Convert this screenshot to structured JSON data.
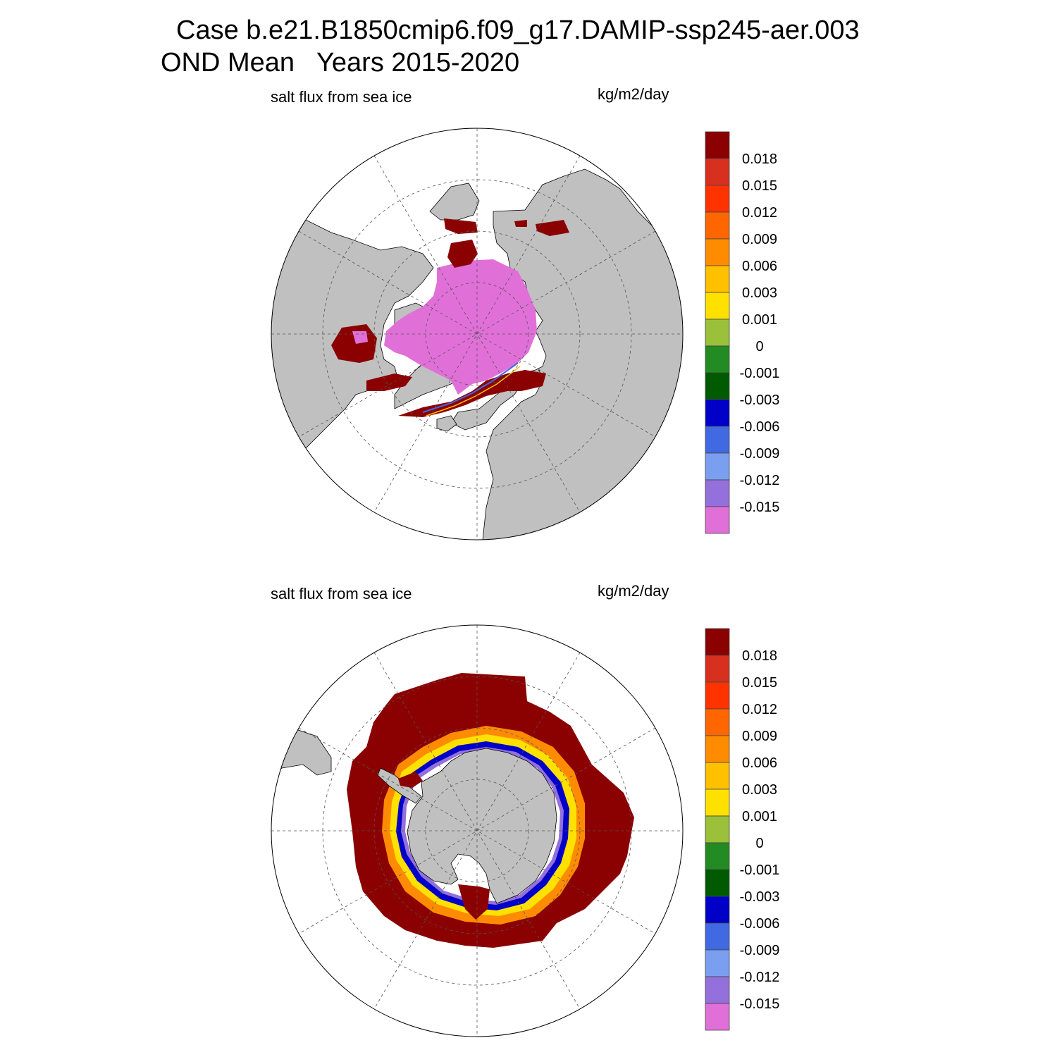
{
  "header": {
    "case_line": "Case b.e21.B1850cmip6.f09_g17.DAMIP-ssp245-aer.003",
    "period_line": "OND Mean   Years 2015-2020"
  },
  "colors": {
    "land": "#c0c0c0",
    "ocean_no_data": "#ffffff",
    "grid": "#555555",
    "outline": "#000000"
  },
  "panels": [
    {
      "id": "north",
      "variable": "salt flux from sea ice",
      "units": "kg/m2/day",
      "hemisphere": "Northern Hemisphere polar stereographic",
      "dominant_level_interior": "< -0.015",
      "dominant_level_margins": "> 0.018"
    },
    {
      "id": "south",
      "variable": "salt flux from sea ice",
      "units": "kg/m2/day",
      "hemisphere": "Southern Hemisphere polar stereographic",
      "dominant_level_outer": "> 0.018",
      "dominant_level_coastal": "-0.006 to -0.015"
    }
  ],
  "colorbar": {
    "levels": [
      "0.018",
      "0.015",
      "0.012",
      "0.009",
      "0.006",
      "0.003",
      "0.001",
      "0",
      "-0.001",
      "-0.003",
      "-0.006",
      "-0.009",
      "-0.012",
      "-0.015"
    ],
    "colors": [
      "#8b0000",
      "#d7301f",
      "#ff3300",
      "#ff6600",
      "#ff8c00",
      "#ffc000",
      "#ffe100",
      "#9bc03a",
      "#228b22",
      "#005a00",
      "#0000c8",
      "#4169e1",
      "#7b9ff0",
      "#9370db",
      "#e070d8"
    ]
  }
}
